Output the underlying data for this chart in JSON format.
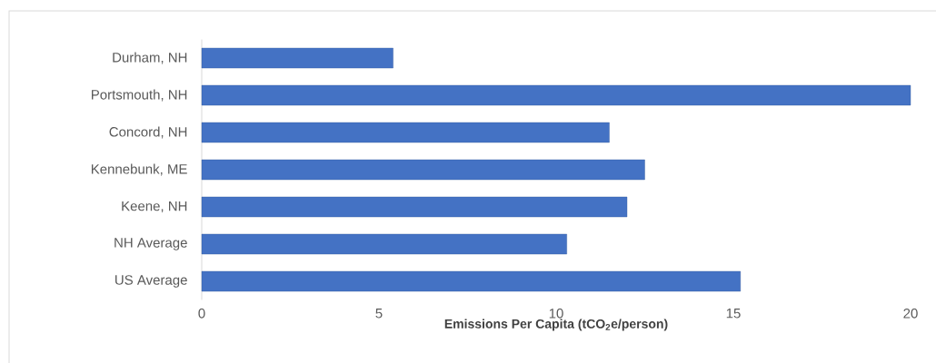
{
  "chart_data": {
    "type": "bar",
    "orientation": "horizontal",
    "categories": [
      "Durham, NH",
      "Portsmouth, NH",
      "Concord, NH",
      "Kennebunk, ME",
      "Keene, NH",
      "NH Average",
      "US Average"
    ],
    "values": [
      5.4,
      20,
      11.5,
      12.5,
      12.0,
      10.3,
      15.2
    ],
    "color": "#4472c4",
    "xlim": [
      0,
      20
    ],
    "xticks": [
      0,
      5,
      10,
      15,
      20
    ],
    "xlabel": "Emissions Per Capita (tCO$_{2}$e/person)",
    "grid": false
  }
}
